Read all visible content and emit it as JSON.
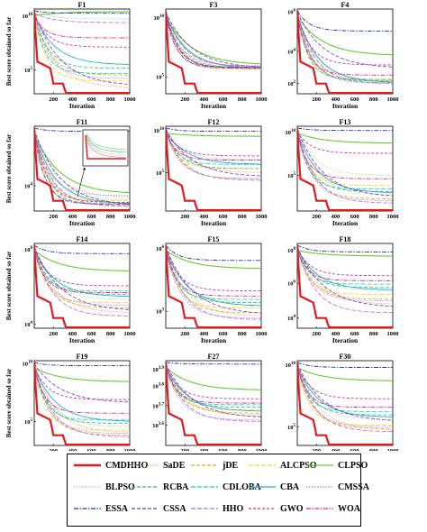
{
  "chart_data": {
    "type": "line",
    "x_label": "Iteration",
    "y_label": "Best score obtained so far",
    "x_ticks": [
      200,
      400,
      600,
      800,
      1000
    ],
    "xlim": [
      0,
      1000
    ],
    "y_scale": "log",
    "legend_position": "bottom",
    "series_styles": [
      {
        "name": "CMDHHO",
        "color": "#e31a1c",
        "dash": "",
        "width": 2.2
      },
      {
        "name": "SaDE",
        "color": "#ff9966",
        "dash": "1.5,1.5",
        "width": 0.8
      },
      {
        "name": "jDE",
        "color": "#e6a817",
        "dash": "4,2",
        "width": 0.8
      },
      {
        "name": "ALCPSO",
        "color": "#ffd11a",
        "dash": "5,2",
        "width": 0.8
      },
      {
        "name": "CLPSO",
        "color": "#66cc33",
        "dash": "",
        "width": 1.1
      },
      {
        "name": "BLPSO",
        "color": "#99dd88",
        "dash": "1.5,1.5",
        "width": 0.8
      },
      {
        "name": "RCBA",
        "color": "#33bb77",
        "dash": "4,2",
        "width": 0.8
      },
      {
        "name": "CDLOBA",
        "color": "#22ccaa",
        "dash": "5,2",
        "width": 0.8
      },
      {
        "name": "CBA",
        "color": "#1fb3d2",
        "dash": "",
        "width": 0.9
      },
      {
        "name": "CMSSA",
        "color": "#8888ee",
        "dash": "1.5,1.5",
        "width": 0.8
      },
      {
        "name": "ESSA",
        "color": "#2233aa",
        "dash": "5,1.5,1.5,1.5",
        "width": 0.9
      },
      {
        "name": "CSSA",
        "color": "#7733cc",
        "dash": "4,2",
        "width": 0.8
      },
      {
        "name": "HHO",
        "color": "#bb66dd",
        "dash": "5,2",
        "width": 0.8
      },
      {
        "name": "GWO",
        "color": "#cc33aa",
        "dash": "3,2",
        "width": 0.9
      },
      {
        "name": "WOA",
        "color": "#ee2288",
        "dash": "5,1.5,1.5,1.5",
        "width": 0.9
      }
    ],
    "panels": [
      {
        "id": "F1",
        "title": "F1",
        "y_ticks": [
          {
            "label": "10",
            "sup": "10",
            "f": 0.08
          },
          {
            "label": "10",
            "sup": "5",
            "f": 0.72
          }
        ],
        "show_ylabel": true,
        "show_xlabel": false,
        "final_level": {
          "CMDHHO": 0.99,
          "SaDE": 0.93,
          "jDE": 0.78,
          "ALCPSO": 0.85,
          "CLPSO": 0.03,
          "BLPSO": 0.12,
          "RCBA": 0.7,
          "CDLOBA": 0.76,
          "CBA": 0.66,
          "CMSSA": 0.82,
          "ESSA": 0.05,
          "CSSA": 0.91,
          "HHO": 0.16,
          "GWO": 0.45,
          "WOA": 0.34
        }
      },
      {
        "id": "F3",
        "title": "F3",
        "y_ticks": [
          {
            "label": "10",
            "sup": "10",
            "f": 0.1
          },
          {
            "label": "10",
            "sup": "5",
            "f": 0.8
          }
        ],
        "show_ylabel": false,
        "show_xlabel": false,
        "final_level": {
          "CMDHHO": 0.99,
          "SaDE": 0.7,
          "jDE": 0.69,
          "ALCPSO": 0.71,
          "CLPSO": 0.66,
          "BLPSO": 0.68,
          "RCBA": 0.69,
          "CDLOBA": 0.7,
          "CBA": 0.7,
          "CMSSA": 0.67,
          "ESSA": 0.69,
          "CSSA": 0.7,
          "HHO": 0.68,
          "GWO": 0.7,
          "WOA": 0.69
        }
      },
      {
        "id": "F4",
        "title": "F4",
        "y_ticks": [
          {
            "label": "10",
            "sup": "6",
            "f": 0.03
          },
          {
            "label": "10",
            "sup": "4",
            "f": 0.5
          },
          {
            "label": "10",
            "sup": "2",
            "f": 0.88
          }
        ],
        "show_ylabel": false,
        "show_xlabel": false,
        "final_level": {
          "CMDHHO": 0.99,
          "SaDE": 0.86,
          "jDE": 0.87,
          "ALCPSO": 0.84,
          "CLPSO": 0.55,
          "BLPSO": 0.86,
          "RCBA": 0.85,
          "CDLOBA": 0.83,
          "CBA": 0.87,
          "CMSSA": 0.88,
          "ESSA": 0.26,
          "CSSA": 0.7,
          "HHO": 0.88,
          "GWO": 0.66,
          "WOA": 0.78
        }
      },
      {
        "id": "F11",
        "title": "F11",
        "y_ticks": [
          {
            "label": "10",
            "sup": "4",
            "f": 0.7
          }
        ],
        "show_ylabel": true,
        "show_xlabel": false,
        "final_level": {
          "CMDHHO": 0.99,
          "SaDE": 0.84,
          "jDE": 0.9,
          "ALCPSO": 0.88,
          "CLPSO": 0.8,
          "BLPSO": 0.87,
          "RCBA": 0.93,
          "CDLOBA": 0.91,
          "CBA": 0.92,
          "CMSSA": 0.82,
          "ESSA": 0.06,
          "CSSA": 0.94,
          "HHO": 0.95,
          "GWO": 0.9,
          "WOA": 0.92
        }
      },
      {
        "id": "F12",
        "title": "F12",
        "y_ticks": [
          {
            "label": "10",
            "sup": "10",
            "f": 0.05
          },
          {
            "label": "10",
            "sup": "5",
            "f": 0.55
          }
        ],
        "show_ylabel": false,
        "show_xlabel": false,
        "final_level": {
          "CMDHHO": 0.99,
          "SaDE": 0.55,
          "jDE": 0.62,
          "ALCPSO": 0.5,
          "CLPSO": 0.12,
          "BLPSO": 0.4,
          "RCBA": 0.5,
          "CDLOBA": 0.45,
          "CBA": 0.45,
          "CMSSA": 0.62,
          "ESSA": 0.06,
          "CSSA": 0.6,
          "HHO": 0.64,
          "GWO": 0.35,
          "WOA": 0.4
        }
      },
      {
        "id": "F13",
        "title": "F13",
        "y_ticks": [
          {
            "label": "10",
            "sup": "10",
            "f": 0.07
          },
          {
            "label": "10",
            "sup": "5",
            "f": 0.58
          }
        ],
        "show_ylabel": false,
        "show_xlabel": false,
        "final_level": {
          "CMDHHO": 0.99,
          "SaDE": 0.82,
          "jDE": 0.86,
          "ALCPSO": 0.7,
          "CLPSO": 0.2,
          "BLPSO": 0.58,
          "RCBA": 0.77,
          "CDLOBA": 0.74,
          "CBA": 0.79,
          "CMSSA": 0.88,
          "ESSA": 0.05,
          "CSSA": 0.84,
          "HHO": 0.91,
          "GWO": 0.32,
          "WOA": 0.62
        }
      },
      {
        "id": "F14",
        "title": "F14",
        "y_ticks": [
          {
            "label": "10",
            "sup": "8",
            "f": 0.07
          },
          {
            "label": "10",
            "sup": "4",
            "f": 0.95
          }
        ],
        "show_ylabel": true,
        "show_xlabel": false,
        "final_level": {
          "CMDHHO": 0.99,
          "SaDE": 0.82,
          "jDE": 0.76,
          "ALCPSO": 0.7,
          "CLPSO": 0.33,
          "BLPSO": 0.66,
          "RCBA": 0.6,
          "CDLOBA": 0.56,
          "CBA": 0.63,
          "CMSSA": 0.73,
          "ESSA": 0.12,
          "CSSA": 0.8,
          "HHO": 0.86,
          "GWO": 0.5,
          "WOA": 0.58
        }
      },
      {
        "id": "F15",
        "title": "F15",
        "y_ticks": [
          {
            "label": "10",
            "sup": "6",
            "f": 0.06
          },
          {
            "label": "10",
            "sup": "3",
            "f": 0.8
          }
        ],
        "show_ylabel": false,
        "show_xlabel": false,
        "final_level": {
          "CMDHHO": 0.99,
          "SaDE": 0.86,
          "jDE": 0.82,
          "ALCPSO": 0.76,
          "CLPSO": 0.3,
          "BLPSO": 0.7,
          "RCBA": 0.7,
          "CDLOBA": 0.66,
          "CBA": 0.74,
          "CMSSA": 0.88,
          "ESSA": 0.2,
          "CSSA": 0.84,
          "HHO": 0.9,
          "GWO": 0.56,
          "WOA": 0.62
        }
      },
      {
        "id": "F18",
        "title": "F18",
        "y_ticks": [
          {
            "label": "10",
            "sup": "8",
            "f": 0.08
          },
          {
            "label": "10",
            "sup": "6",
            "f": 0.47
          },
          {
            "label": "10",
            "sup": "4",
            "f": 0.88
          }
        ],
        "show_ylabel": false,
        "show_xlabel": false,
        "final_level": {
          "CMDHHO": 0.99,
          "SaDE": 0.72,
          "jDE": 0.66,
          "ALCPSO": 0.6,
          "CLPSO": 0.15,
          "BLPSO": 0.56,
          "RCBA": 0.52,
          "CDLOBA": 0.48,
          "CBA": 0.55,
          "CMSSA": 0.68,
          "ESSA": 0.1,
          "CSSA": 0.76,
          "HHO": 0.82,
          "GWO": 0.38,
          "WOA": 0.44
        }
      },
      {
        "id": "F19",
        "title": "F19",
        "y_ticks": [
          {
            "label": "10",
            "sup": "10",
            "f": 0.03
          },
          {
            "label": "10",
            "sup": "5",
            "f": 0.72
          }
        ],
        "show_ylabel": true,
        "show_xlabel": true,
        "final_level": {
          "CMDHHO": 0.99,
          "SaDE": 0.85,
          "jDE": 0.88,
          "ALCPSO": 0.82,
          "CLPSO": 0.25,
          "BLPSO": 0.78,
          "RCBA": 0.74,
          "CDLOBA": 0.7,
          "CBA": 0.72,
          "CMSSA": 0.86,
          "ESSA": 0.06,
          "CSSA": 0.5,
          "HHO": 0.9,
          "GWO": 0.46,
          "WOA": 0.62
        }
      },
      {
        "id": "F27",
        "title": "F27",
        "y_ticks": [
          {
            "label": "10",
            "sup": "3.9",
            "f": 0.1
          },
          {
            "label": "10",
            "sup": "3.8",
            "f": 0.3
          },
          {
            "label": "10",
            "sup": "3.7",
            "f": 0.53
          },
          {
            "label": "10",
            "sup": "3.6",
            "f": 0.76
          }
        ],
        "show_ylabel": false,
        "show_xlabel": true,
        "final_level": {
          "CMDHHO": 0.99,
          "SaDE": 0.66,
          "jDE": 0.62,
          "ALCPSO": 0.58,
          "CLPSO": 0.35,
          "BLPSO": 0.64,
          "RCBA": 0.55,
          "CDLOBA": 0.52,
          "CBA": 0.6,
          "CMSSA": 0.7,
          "ESSA": 0.04,
          "CSSA": 0.68,
          "HHO": 0.72,
          "GWO": 0.45,
          "WOA": 0.5
        }
      },
      {
        "id": "F30",
        "title": "F30",
        "y_ticks": [
          {
            "label": "10",
            "sup": "10",
            "f": 0.05
          },
          {
            "label": "10",
            "sup": "5",
            "f": 0.78
          }
        ],
        "show_ylabel": false,
        "show_xlabel": true,
        "final_level": {
          "CMDHHO": 0.99,
          "SaDE": 0.82,
          "jDE": 0.8,
          "ALCPSO": 0.76,
          "CLPSO": 0.24,
          "BLPSO": 0.7,
          "RCBA": 0.64,
          "CDLOBA": 0.6,
          "CBA": 0.67,
          "CMSSA": 0.78,
          "ESSA": 0.08,
          "CSSA": 0.72,
          "HHO": 0.84,
          "GWO": 0.45,
          "WOA": 0.55
        }
      }
    ],
    "legend": [
      "CMDHHO",
      "SaDE",
      "jDE",
      "ALCPSO",
      "CLPSO",
      "BLPSO",
      "RCBA",
      "CDLOBA",
      "CBA",
      "CMSSA",
      "ESSA",
      "CSSA",
      "HHO",
      "GWO",
      "WOA"
    ]
  }
}
